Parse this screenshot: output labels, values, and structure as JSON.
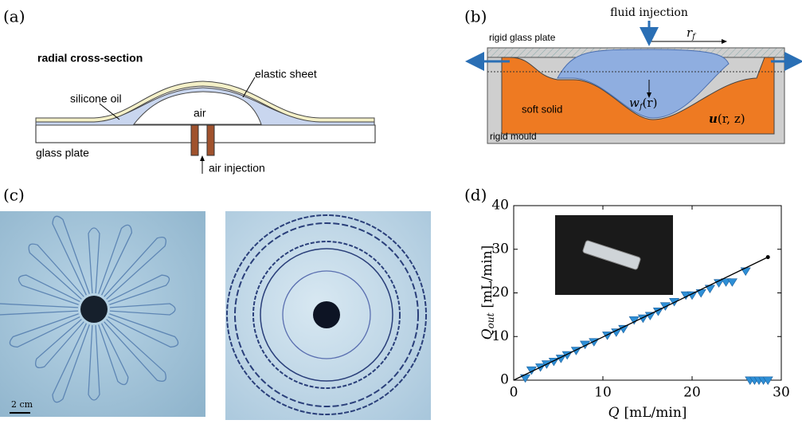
{
  "panel_labels": [
    "(a)",
    "(b)",
    "(c)",
    "(d)"
  ],
  "panel_a": {
    "title": "radial cross-section",
    "elastic_sheet": "elastic sheet",
    "silicone_oil": "silicone oil",
    "air": "air",
    "glass_plate": "glass plate",
    "air_injection": "air injection"
  },
  "panel_b": {
    "fluid_injection": "fluid injection",
    "rigid_glass_plate": "rigid glass plate",
    "r_f": {
      "base": "r",
      "sub": "f"
    },
    "soft_solid": "soft solid",
    "w_f": {
      "base": "w",
      "sub": "f",
      "arg": "(r)"
    },
    "u": {
      "base": "u",
      "arg": "(r, z)"
    },
    "rigid_mould": "rigid mould"
  },
  "panel_c": {
    "scale_bar": "2 cm"
  },
  "chart_data": {
    "type": "scatter",
    "xlabel": {
      "symbol": "Q",
      "unit": "[mL/min]"
    },
    "ylabel": {
      "symbol": "Q",
      "sub": "out",
      "unit": "[mL/min]"
    },
    "xlim": [
      0,
      30
    ],
    "ylim": [
      0,
      40
    ],
    "xticks": [
      0,
      10,
      20,
      30
    ],
    "yticks": [
      0,
      10,
      20,
      30,
      40
    ],
    "grid": false,
    "series": [
      {
        "type": "scatter",
        "color": "#2e8fd6",
        "x": [
          1.3,
          2,
          3,
          3.7,
          4.5,
          5.3,
          6,
          7,
          8,
          9,
          10.5,
          11.5,
          12.3,
          13.5,
          14.5,
          15.3,
          16.2,
          17,
          18,
          19.3,
          20,
          21,
          22,
          23,
          23.8,
          24.5,
          26,
          26.5,
          27,
          27.5,
          28,
          28.5
        ],
        "values": [
          0.5,
          2.3,
          3,
          3.7,
          4.3,
          5,
          5.8,
          6.8,
          8.2,
          8.8,
          10.3,
          11,
          11.8,
          13.8,
          14.2,
          14.8,
          15.8,
          17,
          18,
          19.5,
          19.5,
          20,
          21,
          22.3,
          22.5,
          22.5,
          25,
          0,
          0,
          0,
          0,
          0
        ]
      },
      {
        "type": "line",
        "color": "#000000",
        "x": [
          0,
          28.5
        ],
        "values": [
          0,
          28.2
        ]
      }
    ]
  }
}
